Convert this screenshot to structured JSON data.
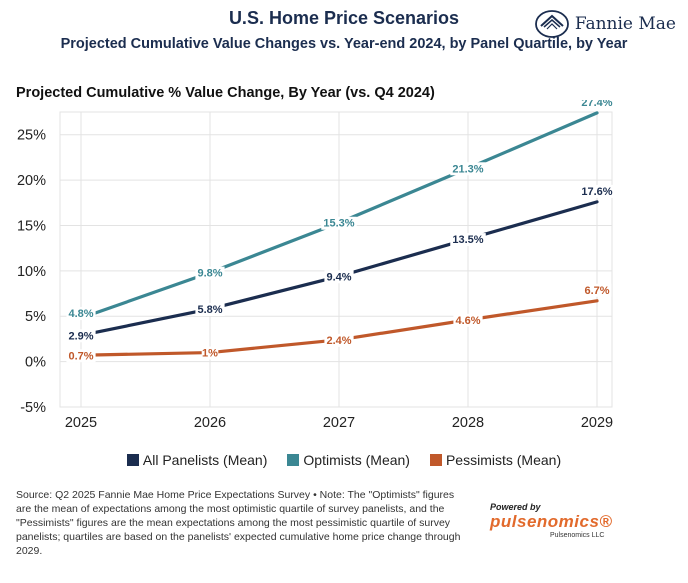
{
  "header": {
    "title": "U.S. Home Price Scenarios",
    "subtitle": "Projected Cumulative Value Changes vs. Year-end 2024, by Panel Quartile, by Year",
    "logo_text": "Fannie Mae"
  },
  "chart_data": {
    "type": "line",
    "title": "Projected Cumulative % Value Change, By Year (vs. Q4 2024)",
    "xlabel": "",
    "ylabel": "",
    "categories": [
      "2025",
      "2026",
      "2027",
      "2028",
      "2029"
    ],
    "ylim": [
      -5,
      27.5
    ],
    "yticks": [
      "-5%",
      "0%",
      "5%",
      "10%",
      "15%",
      "20%",
      "25%"
    ],
    "ytick_values": [
      -5,
      0,
      5,
      10,
      15,
      20,
      25
    ],
    "grid": true,
    "series": [
      {
        "name": "All Panelists (Mean)",
        "color": "#1b2d4f",
        "values": [
          2.9,
          5.8,
          9.4,
          13.5,
          17.6
        ],
        "labels": [
          "2.9%",
          "5.8%",
          "9.4%",
          "13.5%",
          "17.6%"
        ]
      },
      {
        "name": "Optimists (Mean)",
        "color": "#3b8793",
        "values": [
          4.8,
          9.8,
          15.3,
          21.3,
          27.4
        ],
        "labels": [
          "4.8%",
          "9.8%",
          "15.3%",
          "21.3%",
          "27.4%"
        ]
      },
      {
        "name": "Pessimists (Mean)",
        "color": "#c0582a",
        "values": [
          0.7,
          1.0,
          2.4,
          4.6,
          6.7
        ],
        "labels": [
          "0.7%",
          "1%",
          "2.4%",
          "4.6%",
          "6.7%"
        ]
      }
    ]
  },
  "footer": {
    "note": "Source: Q2 2025 Fannie Mae Home Price Expectations Survey • Note: The \"Optimists\" figures are the mean of expectations among the most optimistic quartile of survey panelists, and the \"Pessimists\" figures are the mean expectations among the most pessimistic quartile of survey panelists; quartiles are based on the panelists' expected cumulative home price change through 2029.",
    "powered_by": "Powered by",
    "brand": "pulsenomics®",
    "brand_sub": "Pulsenomics LLC"
  }
}
